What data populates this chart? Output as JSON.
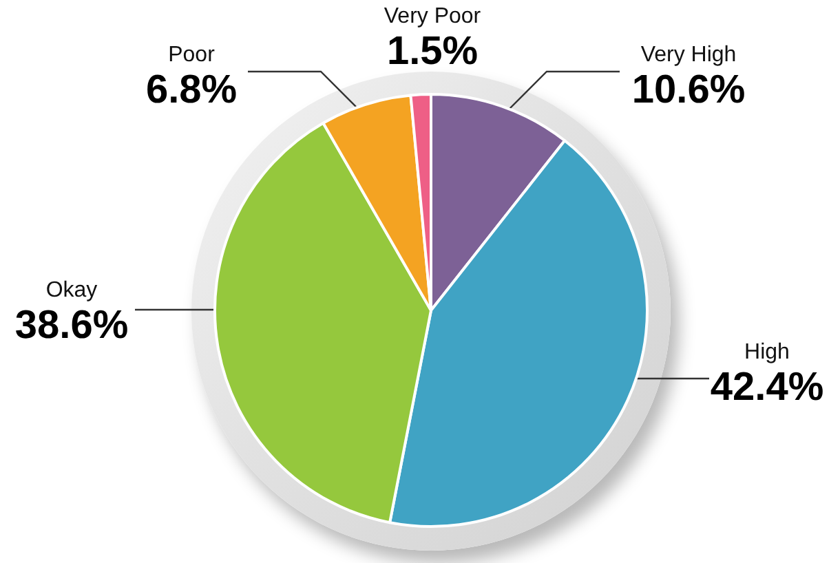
{
  "chart_data": {
    "type": "pie",
    "categories": [
      "Very High",
      "High",
      "Okay",
      "Poor",
      "Very Poor"
    ],
    "values": [
      10.6,
      42.4,
      38.6,
      6.8,
      1.5
    ],
    "colors": [
      "#7d6196",
      "#40a3c4",
      "#95c83d",
      "#f4a322",
      "#ee5f86"
    ],
    "value_labels": [
      "10.6%",
      "42.4%",
      "38.6%",
      "6.8%",
      "1.5%"
    ]
  }
}
